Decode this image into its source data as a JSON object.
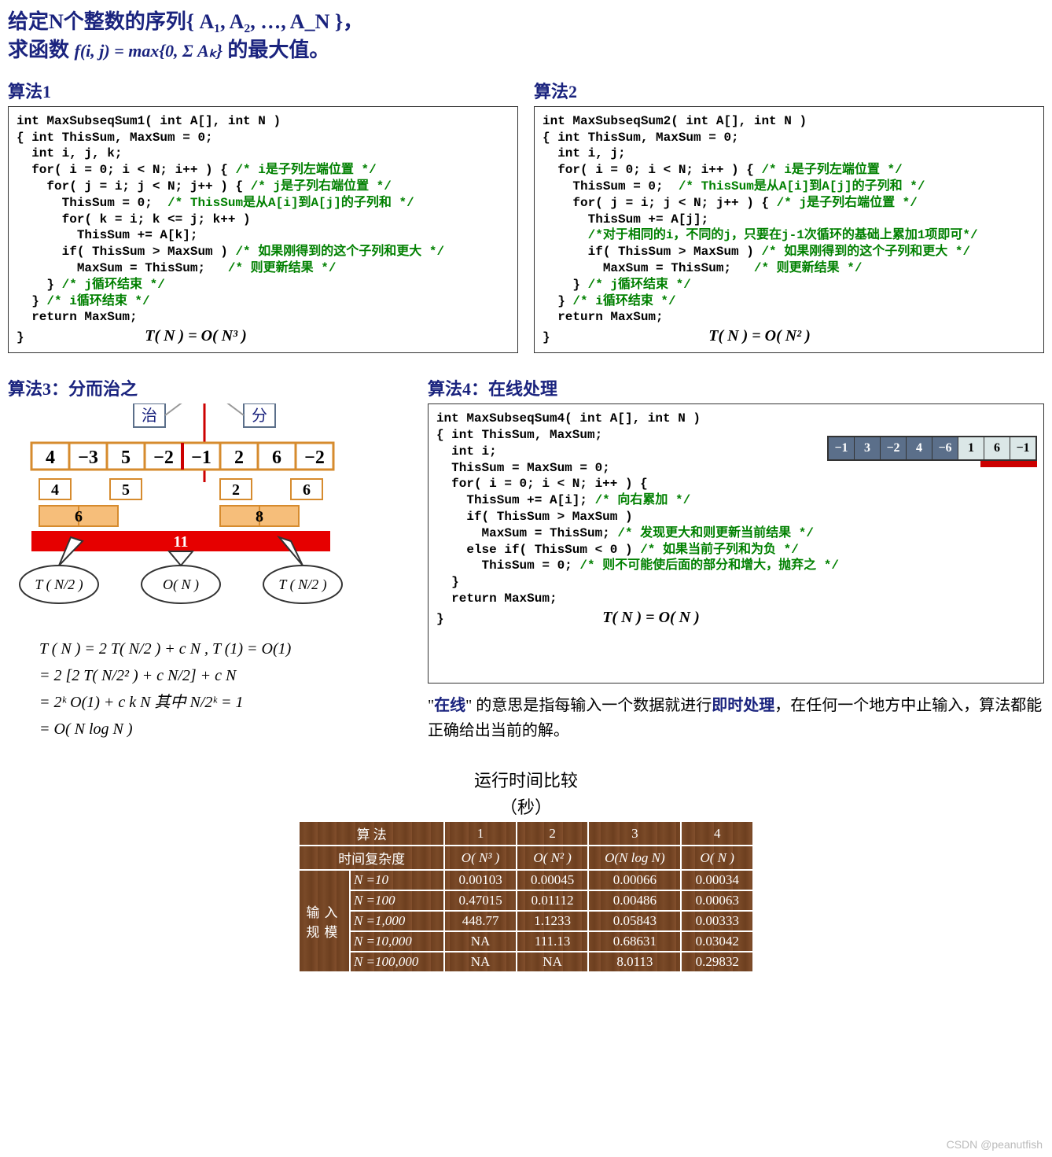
{
  "title_line1": "给定N个整数的序列{ A₁, A₂, …, A_N }，",
  "title_line2a": "求函数  ",
  "title_formula": "f(i, j) = max{0, Σ Aₖ}",
  "title_line2b": "  的最大值。",
  "algo1": {
    "title": "算法1",
    "sig": "int MaxSubseqSum1( int A[], int N )",
    "decl1": "{ int ThisSum, MaxSum = 0;",
    "decl2": "  int i, j, k;",
    "for_i": "  for( i = 0; i < N; i++ ) { ",
    "cmt_i": "/* i是子列左端位置 */",
    "for_j": "    for( j = i; j < N; j++ ) { ",
    "cmt_j": "/* j是子列右端位置 */",
    "ts0": "      ThisSum = 0;  ",
    "cmt_ts0": "/* ThisSum是从A[i]到A[j]的子列和 */",
    "for_k": "      for( k = i; k <= j; k++ )",
    "tsk": "        ThisSum += A[k];",
    "if": "      if( ThisSum > MaxSum ) ",
    "cmt_if": "/* 如果刚得到的这个子列和更大 */",
    "upd": "        MaxSum = ThisSum;   ",
    "cmt_upd": "/* 则更新结果 */",
    "endj": "    } ",
    "cmt_endj": "/* j循环结束 */",
    "endi": "  } ",
    "cmt_endi": "/* i循环结束 */",
    "ret": "  return MaxSum;",
    "close": "}",
    "complexity": "T( N ) = O( N³ )"
  },
  "algo2": {
    "title": "算法2",
    "sig": "int MaxSubseqSum2( int A[], int N )",
    "decl1": "{ int ThisSum, MaxSum = 0;",
    "decl2": "  int i, j;",
    "for_i": "  for( i = 0; i < N; i++ ) { ",
    "cmt_i": "/* i是子列左端位置 */",
    "ts0": "    ThisSum = 0;  ",
    "cmt_ts0": "/* ThisSum是从A[i]到A[j]的子列和 */",
    "for_j": "    for( j = i; j < N; j++ ) { ",
    "cmt_j": "/* j是子列右端位置 */",
    "tsj": "      ThisSum += A[j];",
    "cmt_opt": "      /*对于相同的i，不同的j，只要在j-1次循环的基础上累加1项即可*/",
    "if": "      if( ThisSum > MaxSum ) ",
    "cmt_if": "/* 如果刚得到的这个子列和更大 */",
    "upd": "        MaxSum = ThisSum;   ",
    "cmt_upd": "/* 则更新结果 */",
    "endj": "    } ",
    "cmt_endj": "/* j循环结束 */",
    "endi": "  } ",
    "cmt_endi": "/* i循环结束 */",
    "ret": "  return MaxSum;",
    "close": "}",
    "complexity": "T( N ) = O( N² )"
  },
  "algo3": {
    "title": "算法3：分而治之",
    "label_zhi": "治",
    "label_fen": "分",
    "seq": [
      "4",
      "−3",
      "5",
      "−2",
      "−1",
      "2",
      "6",
      "−2"
    ],
    "seq_colors": [
      "#f6a623",
      "#f6a623",
      "#f6a623",
      "#f6a623",
      "#f6a623",
      "#f6a623",
      "#f6a623",
      "#f6a623"
    ],
    "level2": [
      "4",
      "5",
      "2",
      "6"
    ],
    "level3": [
      "6",
      "8"
    ],
    "level4": "11",
    "bubble_left": "T ( N/2 )",
    "bubble_mid": "O( N )",
    "bubble_right": "T ( N/2 )",
    "math": [
      "T ( N ) = 2 T( N/2 ) + c N ,     T (1) = O(1)",
      "       = 2 [2 T( N/2² ) + c N/2] + c N",
      "       = 2ᵏ O(1) + c k N     其中  N/2ᵏ = 1",
      "       = O( N log N )"
    ]
  },
  "algo4": {
    "title": "算法4：在线处理",
    "sig": "int MaxSubseqSum4( int A[], int N )",
    "decl1": "{ int ThisSum, MaxSum;",
    "decl2": "  int i;",
    "init": "  ThisSum = MaxSum = 0;",
    "for_i": "  for( i = 0; i < N; i++ ) {",
    "ts": "    ThisSum += A[i]; ",
    "cmt_ts": "/* 向右累加 */",
    "if": "    if( ThisSum > MaxSum )",
    "upd": "      MaxSum = ThisSum; ",
    "cmt_upd": "/* 发现更大和则更新当前结果 */",
    "elif": "    else if( ThisSum < 0 ) ",
    "cmt_elif": "/* 如果当前子列和为负 */",
    "reset": "      ThisSum = 0; ",
    "cmt_reset": "/* 则不可能使后面的部分和增大，抛弃之 */",
    "endfor": "  }",
    "ret": "  return MaxSum;",
    "close": "}",
    "complexity": "T( N ) = O( N )",
    "mini_seq": [
      "−1",
      "3",
      "−2",
      "4",
      "−6",
      "1",
      "6",
      "−1"
    ],
    "mini_light_start": 5,
    "explain_a": "\"",
    "explain_online": "在线",
    "explain_b": "\" 的意思是指每输入一个数据就进行",
    "explain_rt": "即时处理",
    "explain_c": "，在任何一个地方中止输入，算法都能正确给出当前的解。"
  },
  "comparison": {
    "title1": "运行时间比较",
    "title2": "（秒）",
    "header1": "算    法",
    "header2": "时间复杂度",
    "cols": [
      "1",
      "2",
      "3",
      "4"
    ],
    "complexities": [
      "O( N³ )",
      "O( N² )",
      "O(N log N)",
      "O( N )"
    ],
    "input_label": "输入规模",
    "rows": [
      {
        "n": "N =10",
        "vals": [
          "0.00103",
          "0.00045",
          "0.00066",
          "0.00034"
        ]
      },
      {
        "n": "N =100",
        "vals": [
          "0.47015",
          "0.01112",
          "0.00486",
          "0.00063"
        ]
      },
      {
        "n": "N =1,000",
        "vals": [
          "448.77",
          "1.1233",
          "0.05843",
          "0.00333"
        ]
      },
      {
        "n": "N =10,000",
        "vals": [
          "NA",
          "111.13",
          "0.68631",
          "0.03042"
        ]
      },
      {
        "n": "N =100,000",
        "vals": [
          "NA",
          "NA",
          "8.0113",
          "0.29832"
        ]
      }
    ]
  },
  "watermark": "CSDN @peanutfish"
}
